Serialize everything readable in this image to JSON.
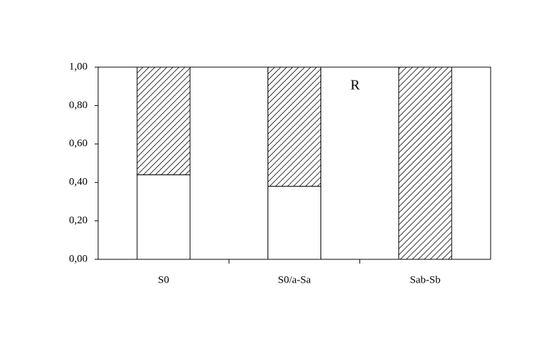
{
  "chart_data": {
    "type": "stacked_bar",
    "annotation": "R",
    "categories": [
      "S0",
      "S0/a-Sa",
      "Sab-Sb"
    ],
    "series": [
      {
        "color": "#ffffff",
        "values": [
          0.44,
          0.38,
          0
        ]
      },
      {
        "color": "#000000",
        "pattern": "hatch",
        "values": [
          0.56,
          0.62,
          1.0
        ]
      }
    ],
    "ylim": [
      0,
      1
    ],
    "yticks": [
      {
        "value": 0,
        "label": "0,00"
      },
      {
        "value": 0.2,
        "label": "0,20"
      },
      {
        "value": 0.4,
        "label": "0,40"
      },
      {
        "value": 0.6,
        "label": "0,60"
      },
      {
        "value": 0.8,
        "label": "0,80"
      },
      {
        "value": 1,
        "label": "1,00"
      }
    ],
    "grid": false
  }
}
